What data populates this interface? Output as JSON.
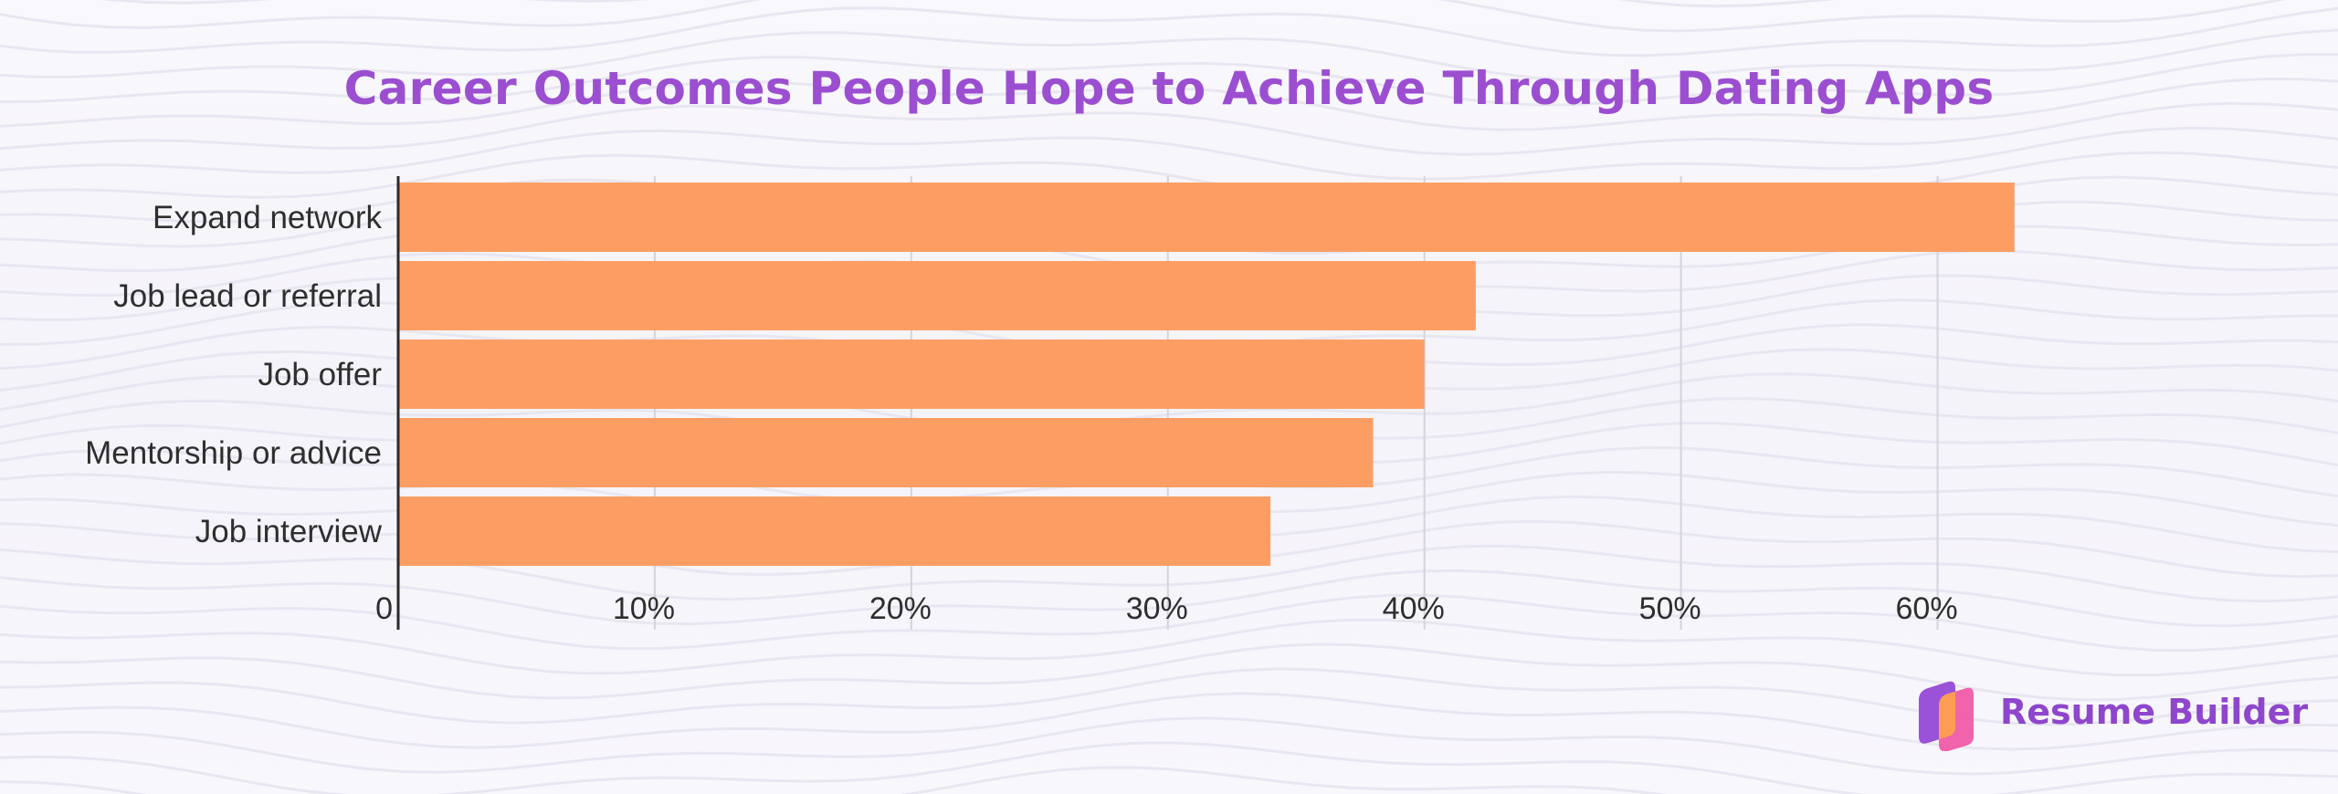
{
  "colors": {
    "title": "#9b4fd0",
    "bar": "#fc9e63",
    "axis": "#2b2b2b",
    "grid": "#d4d3de",
    "label": "#2e2e2e",
    "brand": "#8e46cc",
    "logo_purple": "#9a52d8",
    "logo_pink": "#f05ba6",
    "logo_orange": "#fd9d55"
  },
  "brand": {
    "name": "Resume Builder",
    "logo_icon": "resume-builder-logo-icon"
  },
  "chart_data": {
    "type": "bar",
    "orientation": "horizontal",
    "title": "Career Outcomes People Hope to Achieve Through Dating Apps",
    "categories": [
      "Expand network",
      "Job lead or referral",
      "Job offer",
      "Mentorship or advice",
      "Job interview"
    ],
    "values": [
      63,
      42,
      40,
      38,
      34
    ],
    "unit": "%",
    "xlim": [
      0,
      65
    ],
    "xticks": [
      0,
      10,
      20,
      30,
      40,
      50,
      60
    ],
    "xtick_labels": [
      "0",
      "10%",
      "20%",
      "30%",
      "40%",
      "50%",
      "60%"
    ],
    "xlabel": "",
    "ylabel": "",
    "grid": true,
    "legend": "none"
  }
}
